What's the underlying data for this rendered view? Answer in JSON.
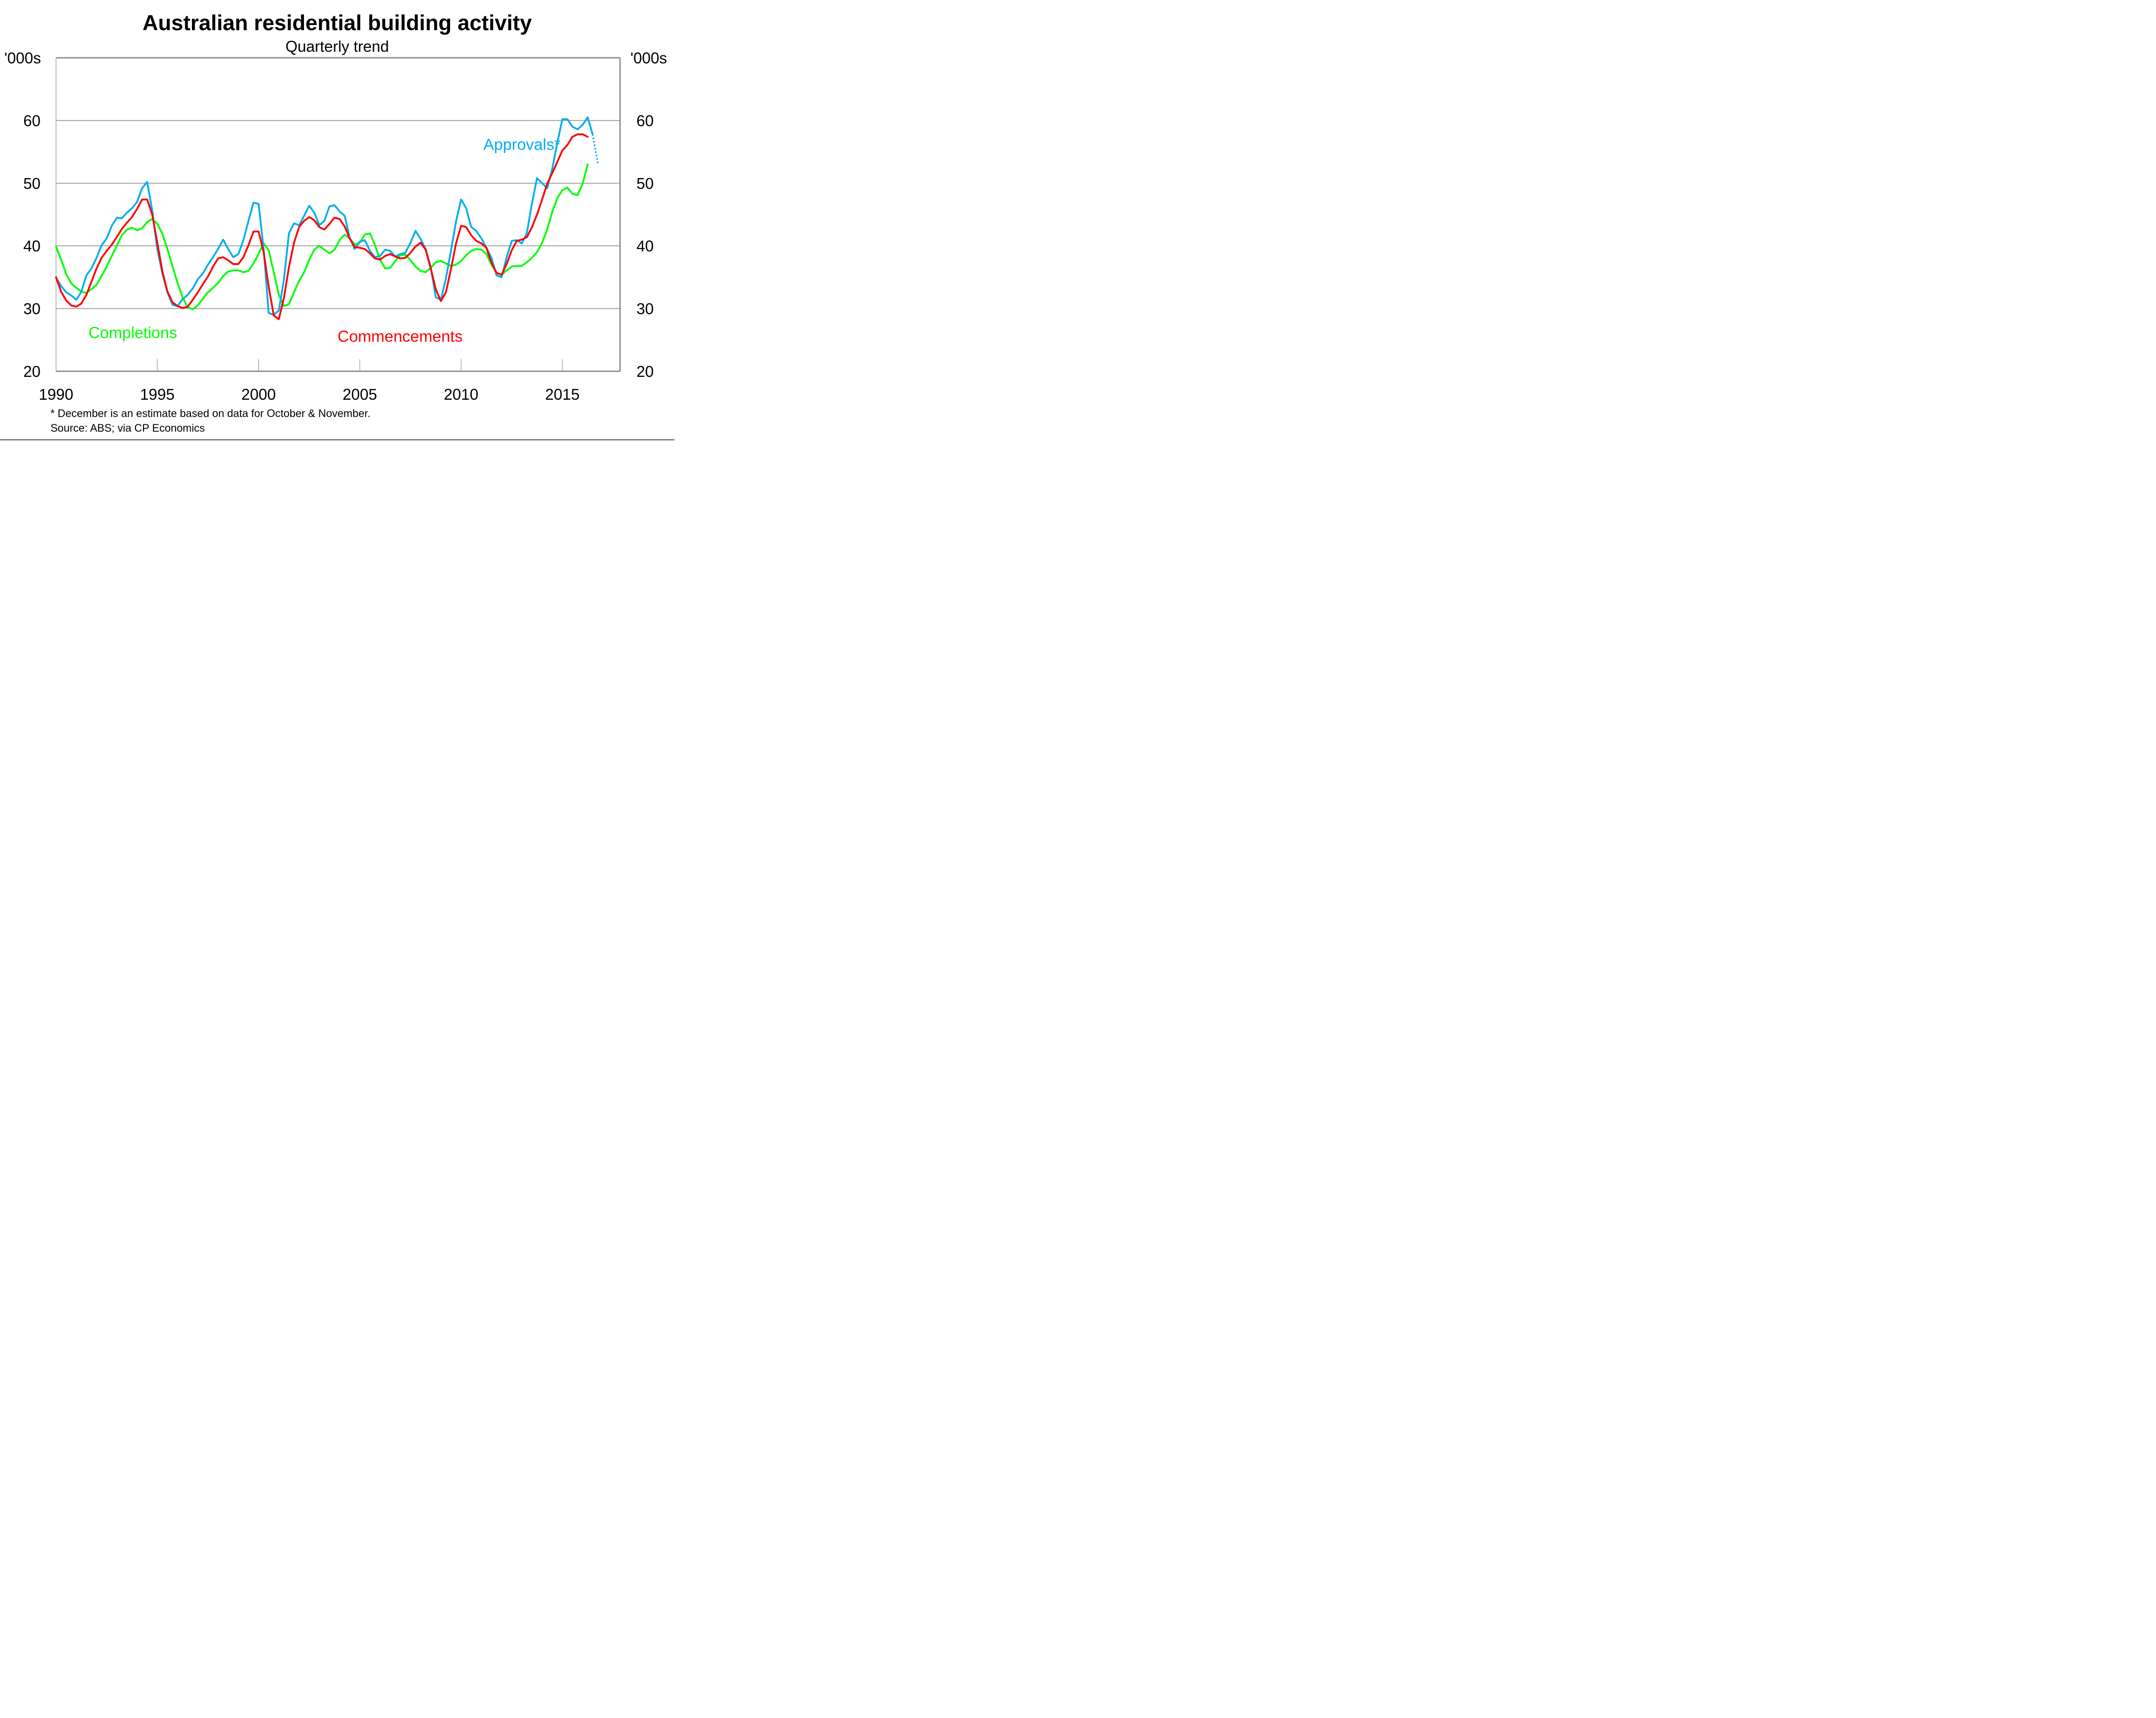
{
  "chart_data": {
    "type": "line",
    "title": "Australian residential building activity",
    "subtitle": "Quarterly trend",
    "ylabel_left": "'000s",
    "ylabel_right": "'000s",
    "xlabel": "",
    "xlim": [
      1990,
      2017.85
    ],
    "ylim": [
      20,
      70
    ],
    "yticks": [
      20,
      30,
      40,
      50,
      60
    ],
    "ytick_labels": [
      "20",
      "30",
      "40",
      "50",
      "60"
    ],
    "xticks": [
      1990,
      1995,
      2000,
      2005,
      2010,
      2015
    ],
    "xtick_labels": [
      "1990",
      "1995",
      "2000",
      "2005",
      "2010",
      "2015"
    ],
    "grid": true,
    "frequency": "quarterly",
    "start": 1990.0,
    "step": 0.25,
    "series": [
      {
        "name": "Approvals*",
        "color": "#00AEEF",
        "values": [
          34.9,
          33.6,
          32.6,
          32.1,
          31.4,
          32.7,
          35.3,
          36.4,
          38.1,
          40.1,
          41.2,
          43.2,
          44.5,
          44.4,
          45.3,
          46.0,
          47.0,
          49.2,
          50.2,
          45.6,
          39.5,
          35.6,
          32.6,
          30.6,
          30.4,
          31.5,
          32.2,
          33.2,
          34.7,
          35.6,
          37.0,
          38.2,
          39.5,
          41.0,
          39.5,
          38.2,
          38.7,
          40.9,
          44.0,
          46.9,
          46.7,
          39.5,
          29.3,
          29.0,
          29.7,
          34.6,
          42.0,
          43.6,
          43.3,
          44.8,
          46.4,
          45.3,
          43.3,
          44.0,
          46.3,
          46.5,
          45.5,
          44.8,
          41.3,
          39.5,
          40.7,
          40.9,
          39.2,
          38.2,
          38.4,
          39.4,
          39.2,
          38.3,
          38.7,
          38.9,
          40.5,
          42.4,
          41.1,
          39.5,
          36.6,
          31.8,
          31.4,
          34.8,
          39.2,
          43.9,
          47.4,
          46.0,
          43.0,
          42.4,
          41.2,
          39.7,
          38.1,
          35.3,
          35.0,
          38.2,
          40.8,
          40.9,
          40.4,
          42.1,
          46.8,
          50.8,
          50.0,
          49.2,
          52.3,
          56.4,
          60.2,
          60.2,
          59.0,
          58.6,
          59.3,
          60.5,
          57.7
        ],
        "estimate": {
          "x": 2016.75,
          "value": 53.3,
          "style": "dotted"
        }
      },
      {
        "name": "Commencements",
        "color": "#FF0000",
        "values": [
          35.0,
          32.7,
          31.3,
          30.5,
          30.3,
          30.8,
          32.2,
          34.3,
          36.4,
          38.1,
          39.2,
          40.2,
          41.4,
          42.7,
          43.7,
          44.6,
          45.9,
          47.4,
          47.4,
          45.0,
          40.5,
          35.9,
          32.7,
          31.0,
          30.4,
          30.1,
          30.3,
          31.4,
          32.6,
          33.9,
          35.1,
          36.7,
          38.0,
          38.2,
          37.7,
          37.1,
          37.1,
          38.2,
          40.1,
          42.3,
          42.3,
          39.0,
          33.5,
          28.9,
          28.3,
          31.7,
          36.6,
          40.5,
          43.0,
          44.0,
          44.6,
          44.1,
          43.0,
          42.6,
          43.5,
          44.5,
          44.3,
          43.1,
          41.2,
          39.8,
          39.7,
          39.5,
          38.8,
          38.0,
          37.8,
          38.4,
          38.7,
          38.3,
          38.0,
          38.1,
          38.9,
          39.9,
          40.5,
          39.4,
          36.4,
          33.1,
          31.2,
          32.6,
          36.3,
          40.4,
          43.2,
          43.0,
          41.7,
          40.8,
          40.4,
          39.7,
          37.3,
          35.7,
          35.4,
          37.1,
          39.3,
          40.8,
          41.0,
          41.4,
          43.0,
          45.0,
          47.4,
          49.9,
          51.6,
          53.4,
          55.2,
          56.1,
          57.4,
          57.8,
          57.8,
          57.4
        ]
      },
      {
        "name": "Completions",
        "color": "#00FF00",
        "values": [
          39.9,
          37.8,
          35.5,
          34.0,
          33.3,
          32.7,
          32.5,
          33.1,
          33.8,
          35.2,
          36.7,
          38.4,
          40.0,
          41.7,
          42.6,
          42.9,
          42.5,
          42.8,
          43.8,
          44.3,
          43.5,
          41.9,
          39.5,
          36.7,
          34.1,
          31.8,
          30.2,
          29.9,
          30.5,
          31.6,
          32.6,
          33.3,
          34.1,
          35.2,
          35.9,
          36.1,
          36.1,
          35.8,
          36.0,
          37.2,
          38.7,
          40.4,
          39.3,
          35.8,
          32.2,
          30.4,
          30.7,
          32.6,
          34.4,
          35.8,
          37.8,
          39.4,
          40.0,
          39.4,
          38.8,
          39.4,
          40.9,
          41.8,
          41.2,
          40.2,
          40.5,
          41.8,
          42.0,
          40.1,
          37.8,
          36.4,
          36.5,
          37.6,
          38.5,
          38.6,
          37.7,
          36.7,
          36.0,
          35.8,
          36.5,
          37.4,
          37.6,
          37.2,
          36.8,
          37.0,
          37.6,
          38.5,
          39.2,
          39.5,
          39.4,
          38.7,
          37.0,
          35.7,
          35.4,
          36.1,
          36.7,
          36.8,
          36.8,
          37.4,
          38.1,
          39.0,
          40.5,
          42.6,
          45.4,
          47.6,
          48.9,
          49.3,
          48.3,
          48.1,
          49.9,
          53.0
        ]
      }
    ],
    "annotations": [
      {
        "text": "Approvals*",
        "color": "#00AEEF",
        "x": 2011.1,
        "y": 55.3
      },
      {
        "text": "Completions",
        "color": "#00FF00",
        "x": 1991.6,
        "y": 25.3
      },
      {
        "text": "Commencements",
        "color": "#FF0000",
        "x": 2003.9,
        "y": 24.7
      }
    ],
    "footnote": "* December is an estimate based on data for October & November.",
    "source": "Source: ABS; via CP Economics"
  }
}
